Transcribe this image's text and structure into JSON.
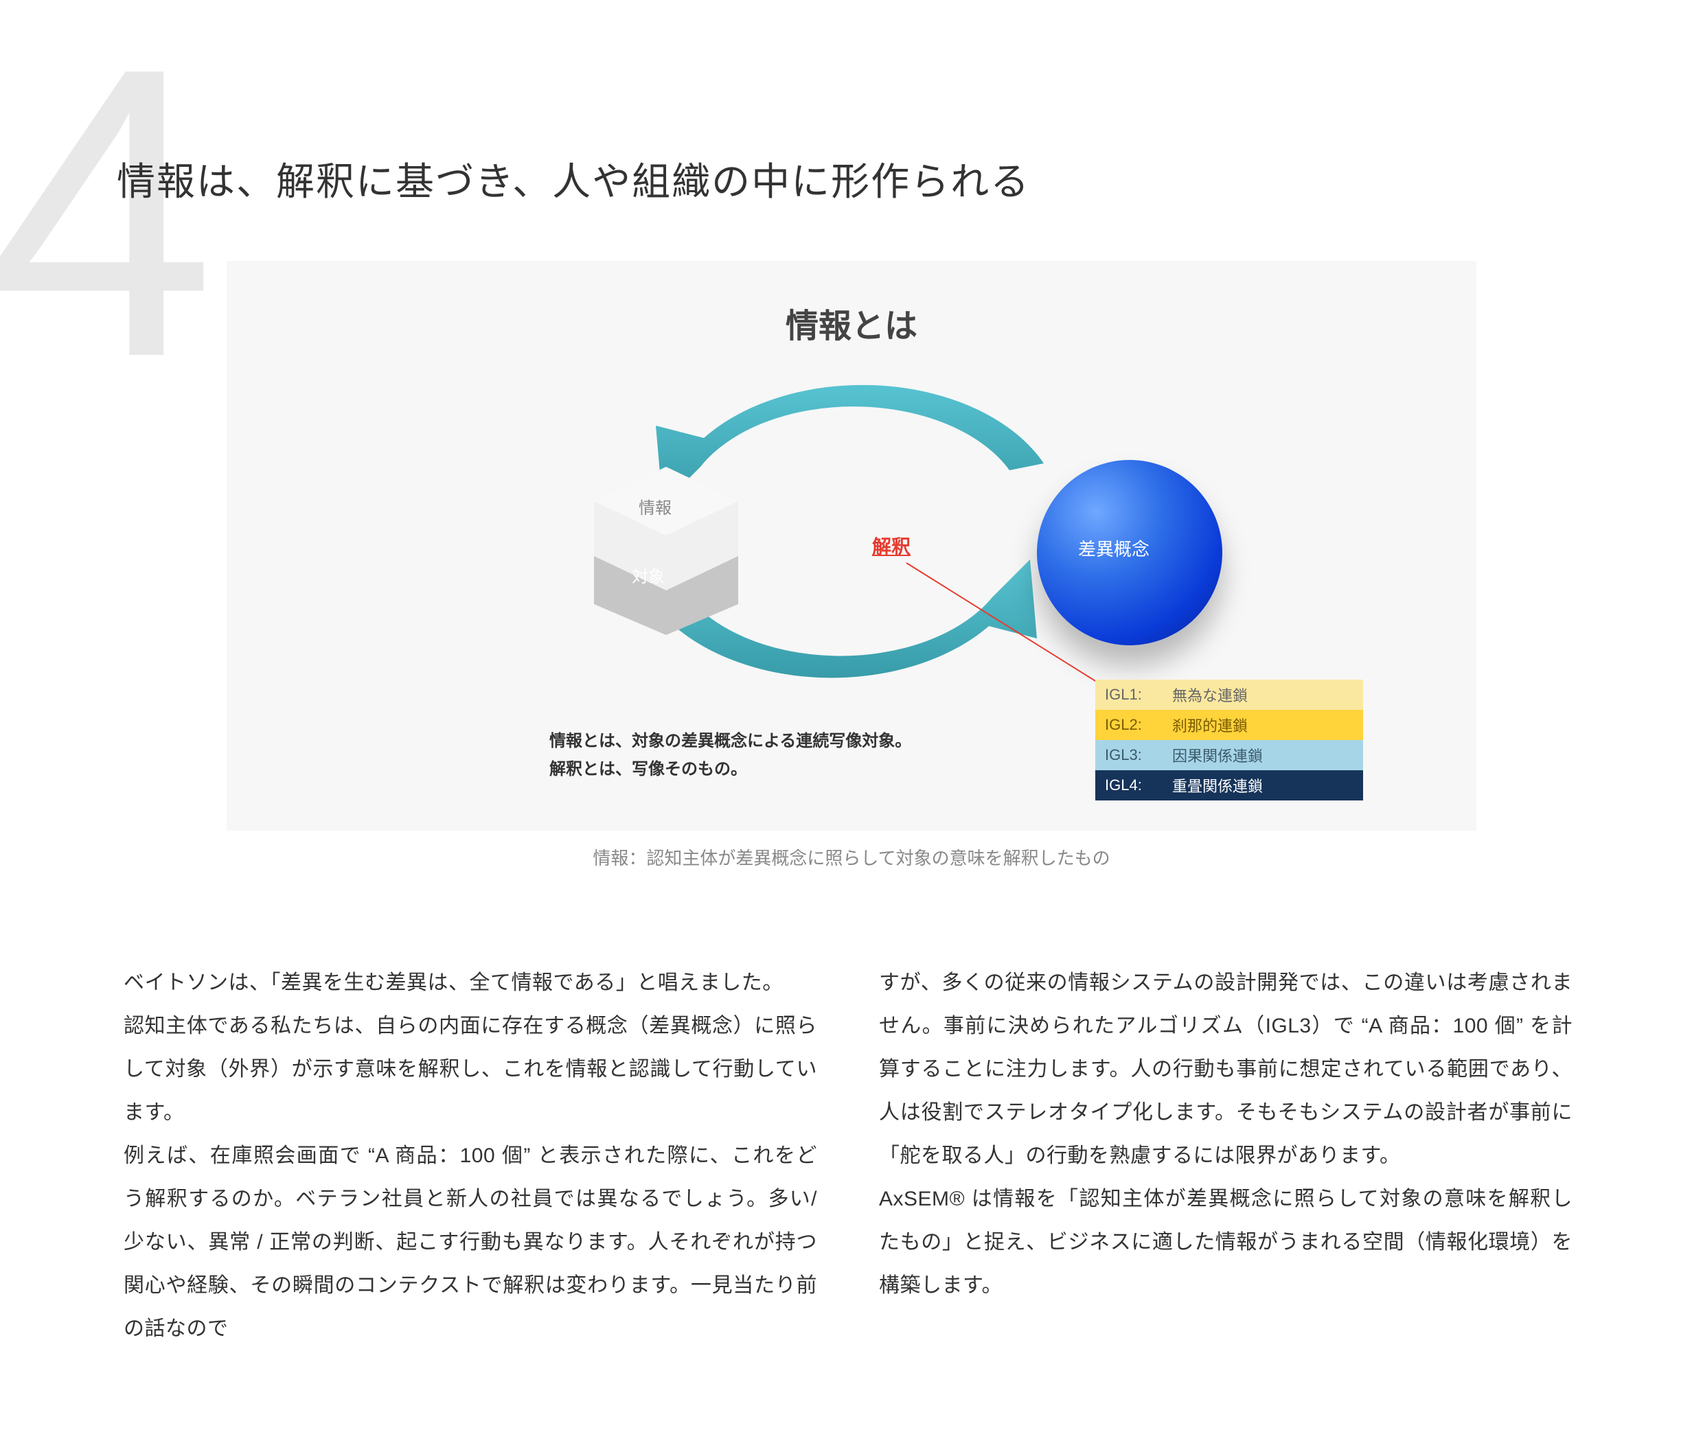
{
  "section_number": "4",
  "title": "情報は、解釈に基づき、人や組織の中に形作られる",
  "diagram": {
    "heading": "情報とは",
    "left_node": {
      "top_label": "情報",
      "bottom_label": "対象"
    },
    "right_node": {
      "label": "差異概念"
    },
    "center_label": "解釈",
    "arrow_color": "#3db1c0",
    "arrow_color_dark": "#2e97a5",
    "accent_color": "#e63b2f",
    "sphere_color_light": "#6fa8ff",
    "sphere_color_dark": "#051f90",
    "hex_top_color": "#f0f0f0",
    "hex_bot_color": "#c6c6c6",
    "background": "#f7f7f7",
    "definition_lines": [
      "情報とは、対象の差異概念による連続写像対象。",
      "解釈とは、写像そのもの。"
    ],
    "legend": {
      "rows": [
        {
          "key": "IGL1:",
          "value": "無為な連鎖",
          "bg": "#fbe8a0",
          "fg": "#666666"
        },
        {
          "key": "IGL2:",
          "value": "刹那的連鎖",
          "bg": "#ffd33a",
          "fg": "#7a5a00"
        },
        {
          "key": "IGL3:",
          "value": "因果関係連鎖",
          "bg": "#a7d5e8",
          "fg": "#3a5a6a"
        },
        {
          "key": "IGL4:",
          "value": "重畳関係連鎖",
          "bg": "#16345a",
          "fg": "#ffffff"
        }
      ]
    }
  },
  "figure_caption": "情報：認知主体が差異概念に照らして対象の意味を解釈したもの",
  "body": {
    "col1": "ベイトソンは、「差異を生む差異は、全て情報である」と唱えました。\n認知主体である私たちは、自らの内面に存在する概念（差異概念）に照らして対象（外界）が示す意味を解釈し、これを情報と認識して行動しています。\n例えば、在庫照会画面で “A 商品：100 個” と表示された際に、これをどう解釈するのか。ベテラン社員と新人の社員では異なるでしょう。多い/少ない、異常 / 正常の判断、起こす行動も異なります。人それぞれが持つ関心や経験、その瞬間のコンテクストで解釈は変わります。一見当たり前の話なので",
    "col2": "すが、多くの従来の情報システムの設計開発では、この違いは考慮されません。事前に決められたアルゴリズム（IGL3）で “A 商品：100 個” を計算することに注力します。人の行動も事前に想定されている範囲であり、人は役割でステレオタイプ化します。そもそもシステムの設計者が事前に「舵を取る人」の行動を熟慮するには限界があります。\nAxSEM® は情報を「認知主体が差異概念に照らして対象の意味を解釈したもの」と捉え、ビジネスに適した情報がうまれる空間（情報化環境）を構築します。"
  },
  "typography": {
    "title_fontsize": 56,
    "body_fontsize": 30,
    "caption_fontsize": 26,
    "diagram_heading_fontsize": 48,
    "legend_fontsize": 22,
    "number_fontsize": 600,
    "number_color": "#e8e8e8"
  }
}
